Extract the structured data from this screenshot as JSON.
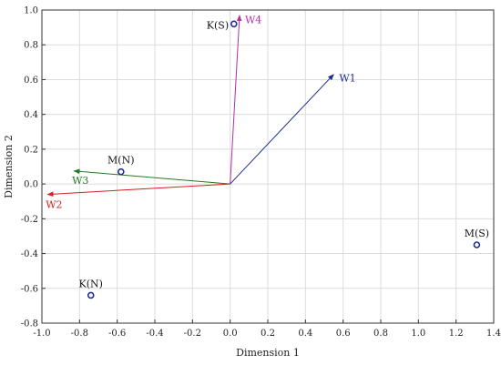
{
  "chart_data": {
    "type": "biplot",
    "xlabel": "Dimension 1",
    "ylabel": "Dimension 2",
    "xlim": [
      -1.0,
      1.4
    ],
    "ylim": [
      -0.8,
      1.0
    ],
    "x_ticks": [
      "-1.0",
      "-0.8",
      "-0.6",
      "-0.4",
      "-0.2",
      "0.0",
      "0.2",
      "0.4",
      "0.6",
      "0.8",
      "1.0",
      "1.2",
      "1.4"
    ],
    "y_ticks": [
      "1.0",
      "0.8",
      "0.6",
      "0.4",
      "0.2",
      "0.0",
      "-0.2",
      "-0.4",
      "-0.6",
      "-0.8"
    ],
    "grid": true,
    "points": [
      {
        "label": "K(S)",
        "x": 0.02,
        "y": 0.92,
        "color": "#1f2f9a"
      },
      {
        "label": "M(N)",
        "x": -0.58,
        "y": 0.07,
        "color": "#1f2f9a"
      },
      {
        "label": "M(S)",
        "x": 1.31,
        "y": -0.35,
        "color": "#1f2f9a"
      },
      {
        "label": "K(N)",
        "x": -0.74,
        "y": -0.64,
        "color": "#1f2f9a"
      }
    ],
    "vectors": [
      {
        "label": "W1",
        "x": 0.55,
        "y": 0.63,
        "color": "#1c2e8f"
      },
      {
        "label": "W2",
        "x": -0.97,
        "y": -0.06,
        "color": "#d42020"
      },
      {
        "label": "W3",
        "x": -0.83,
        "y": 0.075,
        "color": "#237a23"
      },
      {
        "label": "W4",
        "x": 0.05,
        "y": 0.97,
        "color": "#b22fa6"
      }
    ]
  }
}
